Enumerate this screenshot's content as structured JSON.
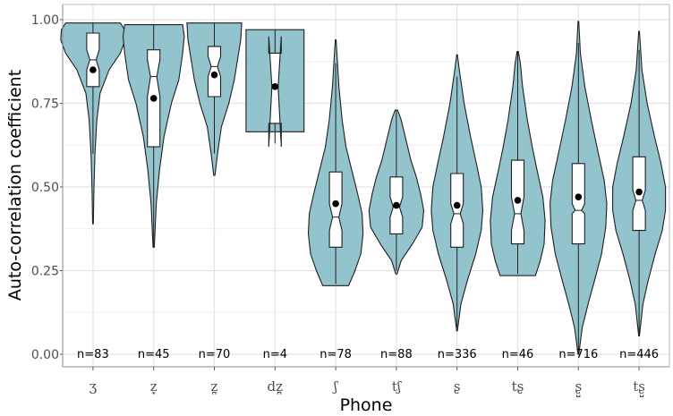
{
  "chart_data": {
    "type": "violin",
    "xlabel": "Phone",
    "ylabel": "Auto-correlation coefficient",
    "ylim": [
      0,
      1
    ],
    "yticks": [
      "0.00",
      "0.25",
      "0.50",
      "0.75",
      "1.00"
    ],
    "grid": true,
    "colors": {
      "violin_fill": "#93c3cd",
      "outline": "#1f1f1f",
      "background": "#ffffff",
      "grid": "#e3e3e3"
    },
    "categories": [
      {
        "label": "ʒ",
        "n_label": "n=83",
        "min": 0.39,
        "max": 0.99,
        "q1": 0.8,
        "median": 0.88,
        "q3": 0.96,
        "mean": 0.85,
        "notch": [
          0.85,
          0.91
        ],
        "whisker": [
          0.6,
          0.99
        ],
        "density": [
          [
            0.39,
            0.01
          ],
          [
            0.5,
            0.03
          ],
          [
            0.6,
            0.06
          ],
          [
            0.7,
            0.12
          ],
          [
            0.78,
            0.22
          ],
          [
            0.85,
            0.5
          ],
          [
            0.9,
            0.85
          ],
          [
            0.94,
            1.0
          ],
          [
            0.97,
            0.98
          ],
          [
            0.99,
            0.85
          ]
        ]
      },
      {
        "label": "z̞",
        "n_label": "n=45",
        "min": 0.32,
        "max": 0.985,
        "q1": 0.62,
        "median": 0.83,
        "q3": 0.91,
        "mean": 0.765,
        "notch": [
          0.77,
          0.88
        ],
        "whisker": [
          0.32,
          0.985
        ],
        "density": [
          [
            0.32,
            0.02
          ],
          [
            0.45,
            0.08
          ],
          [
            0.55,
            0.18
          ],
          [
            0.65,
            0.32
          ],
          [
            0.75,
            0.55
          ],
          [
            0.82,
            0.78
          ],
          [
            0.9,
            0.9
          ],
          [
            0.95,
            0.95
          ],
          [
            0.985,
            0.9
          ]
        ]
      },
      {
        "label": "z̪",
        "n_label": "n=70",
        "min": 0.535,
        "max": 0.99,
        "q1": 0.77,
        "median": 0.86,
        "q3": 0.92,
        "mean": 0.835,
        "notch": [
          0.83,
          0.89
        ],
        "whisker": [
          0.6,
          0.99
        ],
        "density": [
          [
            0.535,
            0.02
          ],
          [
            0.6,
            0.1
          ],
          [
            0.68,
            0.22
          ],
          [
            0.75,
            0.45
          ],
          [
            0.82,
            0.62
          ],
          [
            0.88,
            0.72
          ],
          [
            0.94,
            0.82
          ],
          [
            0.99,
            0.85
          ]
        ]
      },
      {
        "label": "dz̪",
        "n_label": "n=4",
        "min": 0.63,
        "max": 0.97,
        "q1": 0.69,
        "median": 0.8,
        "q3": 0.9,
        "mean": 0.8,
        "notch": [
          0.62,
          0.95
        ],
        "whisker": [
          0.63,
          0.97
        ],
        "density": [
          [
            0.665,
            0.9
          ],
          [
            0.97,
            0.9
          ]
        ]
      },
      {
        "label": "ʃ",
        "n_label": "n=78",
        "min": 0.205,
        "max": 0.94,
        "q1": 0.32,
        "median": 0.41,
        "q3": 0.545,
        "mean": 0.45,
        "notch": [
          0.37,
          0.45
        ],
        "whisker": [
          0.21,
          0.87
        ],
        "density": [
          [
            0.205,
            0.4
          ],
          [
            0.25,
            0.6
          ],
          [
            0.3,
            0.78
          ],
          [
            0.36,
            0.85
          ],
          [
            0.42,
            0.82
          ],
          [
            0.48,
            0.68
          ],
          [
            0.55,
            0.5
          ],
          [
            0.62,
            0.32
          ],
          [
            0.7,
            0.2
          ],
          [
            0.8,
            0.1
          ],
          [
            0.88,
            0.05
          ],
          [
            0.94,
            0.01
          ]
        ]
      },
      {
        "label": "tʃ",
        "n_label": "n=88",
        "min": 0.24,
        "max": 0.73,
        "q1": 0.36,
        "median": 0.44,
        "q3": 0.53,
        "mean": 0.445,
        "notch": [
          0.41,
          0.47
        ],
        "whisker": [
          0.25,
          0.73
        ],
        "density": [
          [
            0.24,
            0.02
          ],
          [
            0.28,
            0.15
          ],
          [
            0.33,
            0.5
          ],
          [
            0.38,
            0.8
          ],
          [
            0.43,
            0.85
          ],
          [
            0.48,
            0.75
          ],
          [
            0.53,
            0.62
          ],
          [
            0.58,
            0.45
          ],
          [
            0.64,
            0.3
          ],
          [
            0.7,
            0.15
          ],
          [
            0.73,
            0.04
          ]
        ]
      },
      {
        "label": "ʂ",
        "n_label": "n=336",
        "min": 0.07,
        "max": 0.895,
        "q1": 0.32,
        "median": 0.42,
        "q3": 0.54,
        "mean": 0.445,
        "notch": [
          0.39,
          0.45
        ],
        "whisker": [
          0.08,
          0.83
        ],
        "density": [
          [
            0.07,
            0.01
          ],
          [
            0.15,
            0.12
          ],
          [
            0.22,
            0.32
          ],
          [
            0.3,
            0.58
          ],
          [
            0.37,
            0.75
          ],
          [
            0.43,
            0.8
          ],
          [
            0.5,
            0.75
          ],
          [
            0.57,
            0.6
          ],
          [
            0.65,
            0.42
          ],
          [
            0.75,
            0.22
          ],
          [
            0.85,
            0.07
          ],
          [
            0.895,
            0.01
          ]
        ]
      },
      {
        "label": "tʂ",
        "n_label": "n=46",
        "min": 0.235,
        "max": 0.905,
        "q1": 0.33,
        "median": 0.42,
        "q3": 0.58,
        "mean": 0.46,
        "notch": [
          0.37,
          0.47
        ],
        "whisker": [
          0.24,
          0.905
        ],
        "density": [
          [
            0.235,
            0.55
          ],
          [
            0.28,
            0.7
          ],
          [
            0.33,
            0.82
          ],
          [
            0.4,
            0.85
          ],
          [
            0.47,
            0.78
          ],
          [
            0.55,
            0.6
          ],
          [
            0.62,
            0.45
          ],
          [
            0.7,
            0.3
          ],
          [
            0.8,
            0.15
          ],
          [
            0.87,
            0.08
          ],
          [
            0.905,
            0.02
          ]
        ]
      },
      {
        "label": "ʂ̺",
        "n_label": "n=716",
        "min": 0.0,
        "max": 0.995,
        "q1": 0.33,
        "median": 0.43,
        "q3": 0.57,
        "mean": 0.47,
        "notch": [
          0.42,
          0.45
        ],
        "whisker": [
          0.0,
          0.93
        ],
        "density": [
          [
            0.0,
            0.01
          ],
          [
            0.08,
            0.12
          ],
          [
            0.15,
            0.3
          ],
          [
            0.22,
            0.5
          ],
          [
            0.3,
            0.72
          ],
          [
            0.38,
            0.85
          ],
          [
            0.45,
            0.88
          ],
          [
            0.52,
            0.8
          ],
          [
            0.6,
            0.62
          ],
          [
            0.7,
            0.4
          ],
          [
            0.8,
            0.2
          ],
          [
            0.9,
            0.06
          ],
          [
            0.995,
            0.01
          ]
        ]
      },
      {
        "label": "tʂ̺",
        "n_label": "n=446",
        "min": 0.055,
        "max": 0.965,
        "q1": 0.37,
        "median": 0.46,
        "q3": 0.59,
        "mean": 0.485,
        "notch": [
          0.43,
          0.49
        ],
        "whisker": [
          0.06,
          0.91
        ],
        "density": [
          [
            0.055,
            0.01
          ],
          [
            0.15,
            0.12
          ],
          [
            0.22,
            0.28
          ],
          [
            0.3,
            0.5
          ],
          [
            0.37,
            0.72
          ],
          [
            0.43,
            0.82
          ],
          [
            0.5,
            0.82
          ],
          [
            0.57,
            0.68
          ],
          [
            0.65,
            0.48
          ],
          [
            0.75,
            0.25
          ],
          [
            0.85,
            0.09
          ],
          [
            0.965,
            0.01
          ]
        ]
      }
    ]
  }
}
